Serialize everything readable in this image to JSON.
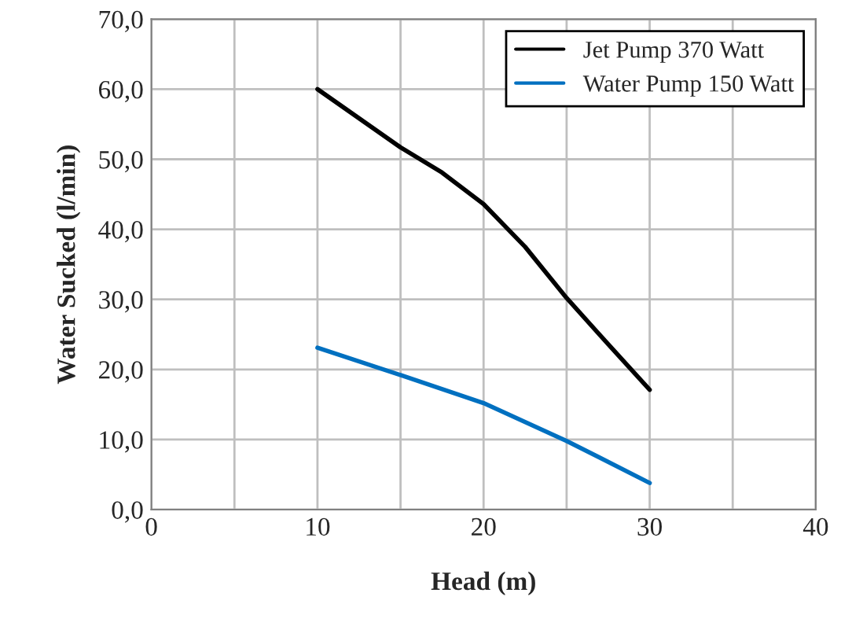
{
  "chart_data": {
    "type": "line",
    "xlabel": "Head (m)",
    "ylabel": "Water Sucked (l/min)",
    "xlim": [
      0,
      40
    ],
    "ylim": [
      0,
      70
    ],
    "xticks": [
      0,
      {
        "value": 5,
        "label": null
      },
      10,
      {
        "value": 15,
        "label": null
      },
      20,
      {
        "value": 25,
        "label": null
      },
      30,
      {
        "value": 35,
        "label": null
      },
      40
    ],
    "yticks": [
      {
        "value": 0,
        "label": "0,0"
      },
      {
        "value": 10,
        "label": "10,0"
      },
      {
        "value": 20,
        "label": "20,0"
      },
      {
        "value": 30,
        "label": "30,0"
      },
      {
        "value": 40,
        "label": "40,0"
      },
      {
        "value": 50,
        "label": "50,0"
      },
      {
        "value": 60,
        "label": "60,0"
      },
      {
        "value": 70,
        "label": "70,0"
      }
    ],
    "grid": true,
    "legend": "top right",
    "marker": "none",
    "line_style": "solid",
    "series": [
      {
        "name": "Jet Pump 370 Watt",
        "color": "#000000",
        "x": [
          10,
          15,
          17.5,
          20,
          22.5,
          25,
          27.5,
          30
        ],
        "values": [
          60,
          51.7,
          48.1,
          43.6,
          37.5,
          30.2,
          23.6,
          17.1
        ]
      },
      {
        "name": "Water Pump 150 Watt",
        "color": "#0070c0",
        "x": [
          10,
          15,
          20,
          25,
          30
        ],
        "values": [
          23.1,
          19.2,
          15.2,
          9.8,
          3.8
        ]
      }
    ]
  }
}
